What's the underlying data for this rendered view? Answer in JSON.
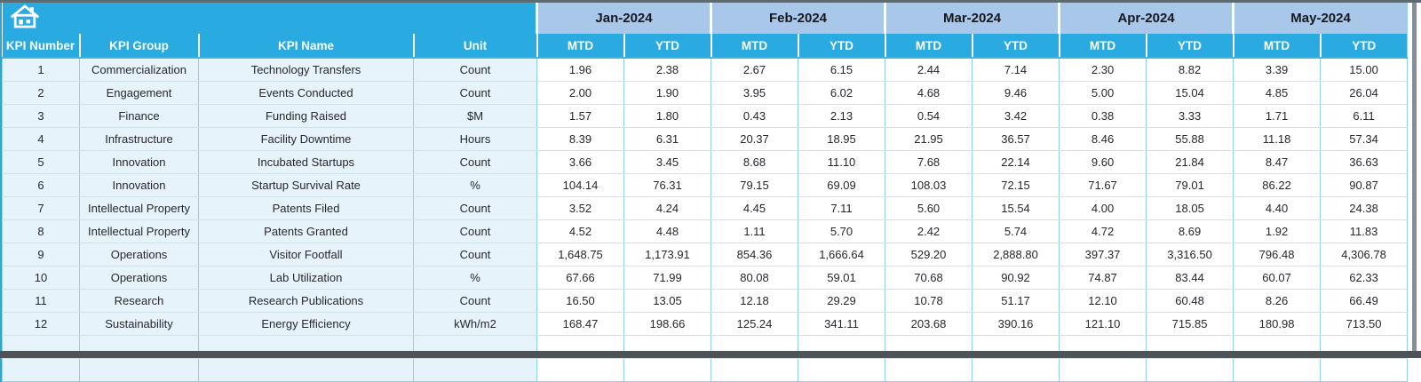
{
  "table": {
    "months": [
      "Jan-2024",
      "Feb-2024",
      "Mar-2024",
      "Apr-2024",
      "May-2024"
    ],
    "sub_headers": [
      "MTD",
      "YTD"
    ],
    "columns": [
      "KPI Number",
      "KPI Group",
      "KPI Name",
      "Unit"
    ],
    "rows": [
      {
        "number": "1",
        "group": "Commercialization",
        "name": "Technology Transfers",
        "unit": "Count",
        "values": [
          "1.96",
          "2.38",
          "2.67",
          "6.15",
          "2.44",
          "7.14",
          "2.30",
          "8.82",
          "3.39",
          "15.00"
        ]
      },
      {
        "number": "2",
        "group": "Engagement",
        "name": "Events Conducted",
        "unit": "Count",
        "values": [
          "2.00",
          "1.90",
          "3.95",
          "6.02",
          "4.68",
          "9.46",
          "5.00",
          "15.04",
          "4.85",
          "26.04"
        ]
      },
      {
        "number": "3",
        "group": "Finance",
        "name": "Funding Raised",
        "unit": "$M",
        "values": [
          "1.57",
          "1.80",
          "0.43",
          "2.13",
          "0.54",
          "3.42",
          "0.38",
          "3.33",
          "1.71",
          "6.11"
        ]
      },
      {
        "number": "4",
        "group": "Infrastructure",
        "name": "Facility Downtime",
        "unit": "Hours",
        "values": [
          "8.39",
          "6.31",
          "20.37",
          "18.95",
          "21.95",
          "36.57",
          "8.46",
          "55.88",
          "11.18",
          "57.34"
        ]
      },
      {
        "number": "5",
        "group": "Innovation",
        "name": "Incubated Startups",
        "unit": "Count",
        "values": [
          "3.66",
          "3.45",
          "8.68",
          "11.10",
          "7.68",
          "22.14",
          "9.60",
          "21.84",
          "8.47",
          "36.63"
        ]
      },
      {
        "number": "6",
        "group": "Innovation",
        "name": "Startup Survival Rate",
        "unit": "%",
        "values": [
          "104.14",
          "76.31",
          "79.15",
          "69.09",
          "108.03",
          "72.15",
          "71.67",
          "79.01",
          "86.22",
          "90.87"
        ]
      },
      {
        "number": "7",
        "group": "Intellectual Property",
        "name": "Patents Filed",
        "unit": "Count",
        "values": [
          "3.52",
          "4.24",
          "4.45",
          "7.11",
          "5.60",
          "15.54",
          "4.00",
          "18.05",
          "4.40",
          "24.38"
        ]
      },
      {
        "number": "8",
        "group": "Intellectual Property",
        "name": "Patents Granted",
        "unit": "Count",
        "values": [
          "4.52",
          "4.48",
          "1.11",
          "5.70",
          "2.42",
          "5.74",
          "4.72",
          "8.69",
          "1.92",
          "11.83"
        ]
      },
      {
        "number": "9",
        "group": "Operations",
        "name": "Visitor Footfall",
        "unit": "Count",
        "values": [
          "1,648.75",
          "1,173.91",
          "854.36",
          "1,666.64",
          "529.20",
          "2,888.80",
          "397.37",
          "3,316.50",
          "796.48",
          "4,306.78"
        ]
      },
      {
        "number": "10",
        "group": "Operations",
        "name": "Lab Utilization",
        "unit": "%",
        "values": [
          "67.66",
          "71.99",
          "80.08",
          "59.01",
          "70.68",
          "90.92",
          "74.87",
          "83.44",
          "60.07",
          "62.33"
        ]
      },
      {
        "number": "11",
        "group": "Research",
        "name": "Research Publications",
        "unit": "Count",
        "values": [
          "16.50",
          "13.05",
          "12.18",
          "29.29",
          "10.78",
          "51.17",
          "12.10",
          "60.48",
          "8.26",
          "66.49"
        ]
      },
      {
        "number": "12",
        "group": "Sustainability",
        "name": "Energy Efficiency",
        "unit": "kWh/m2",
        "values": [
          "168.47",
          "198.66",
          "125.24",
          "341.11",
          "203.68",
          "390.16",
          "121.10",
          "715.85",
          "180.98",
          "713.50"
        ]
      }
    ],
    "empty_rows": 2
  },
  "icons": {
    "home": "home-icon"
  },
  "colors": {
    "header_cyan": "#29abe2",
    "month_band_blue": "#a9c7e8",
    "row_tint_blue": "#e6f3fb",
    "grid_cyan": "#8fd2e8",
    "frame_dark": "#4e5357"
  }
}
